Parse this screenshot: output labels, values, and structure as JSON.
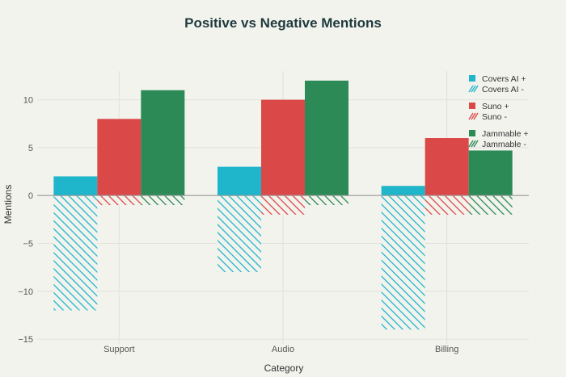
{
  "chart_data": {
    "type": "bar",
    "title": "Positive vs Negative Mentions",
    "xlabel": "Category",
    "ylabel": "Mentions",
    "categories": [
      "Support",
      "Audio",
      "Billing"
    ],
    "ylim": [
      -15.5,
      13
    ],
    "yticks": [
      -15,
      -10,
      -5,
      0,
      5,
      10
    ],
    "grid": true,
    "legend_position": "top-right",
    "series": [
      {
        "name": "Covers AI +",
        "color": "#1fb5cb",
        "pattern": "solid",
        "group": 0,
        "values": [
          2,
          3,
          1
        ]
      },
      {
        "name": "Covers AI -",
        "color": "#1fb5cb",
        "pattern": "hatch",
        "group": 0,
        "values": [
          -12,
          -8,
          -14
        ]
      },
      {
        "name": "Suno +",
        "color": "#db4848",
        "pattern": "solid",
        "group": 1,
        "values": [
          8,
          10,
          6
        ]
      },
      {
        "name": "Suno -",
        "color": "#db4848",
        "pattern": "hatch",
        "group": 1,
        "values": [
          -1,
          -2,
          -2
        ]
      },
      {
        "name": "Jammable +",
        "color": "#2b8a55",
        "pattern": "solid",
        "group": 2,
        "values": [
          11,
          12,
          4.7
        ]
      },
      {
        "name": "Jammable -",
        "color": "#2b8a55",
        "pattern": "hatch",
        "group": 2,
        "values": [
          -1,
          -1,
          -2
        ]
      }
    ]
  }
}
